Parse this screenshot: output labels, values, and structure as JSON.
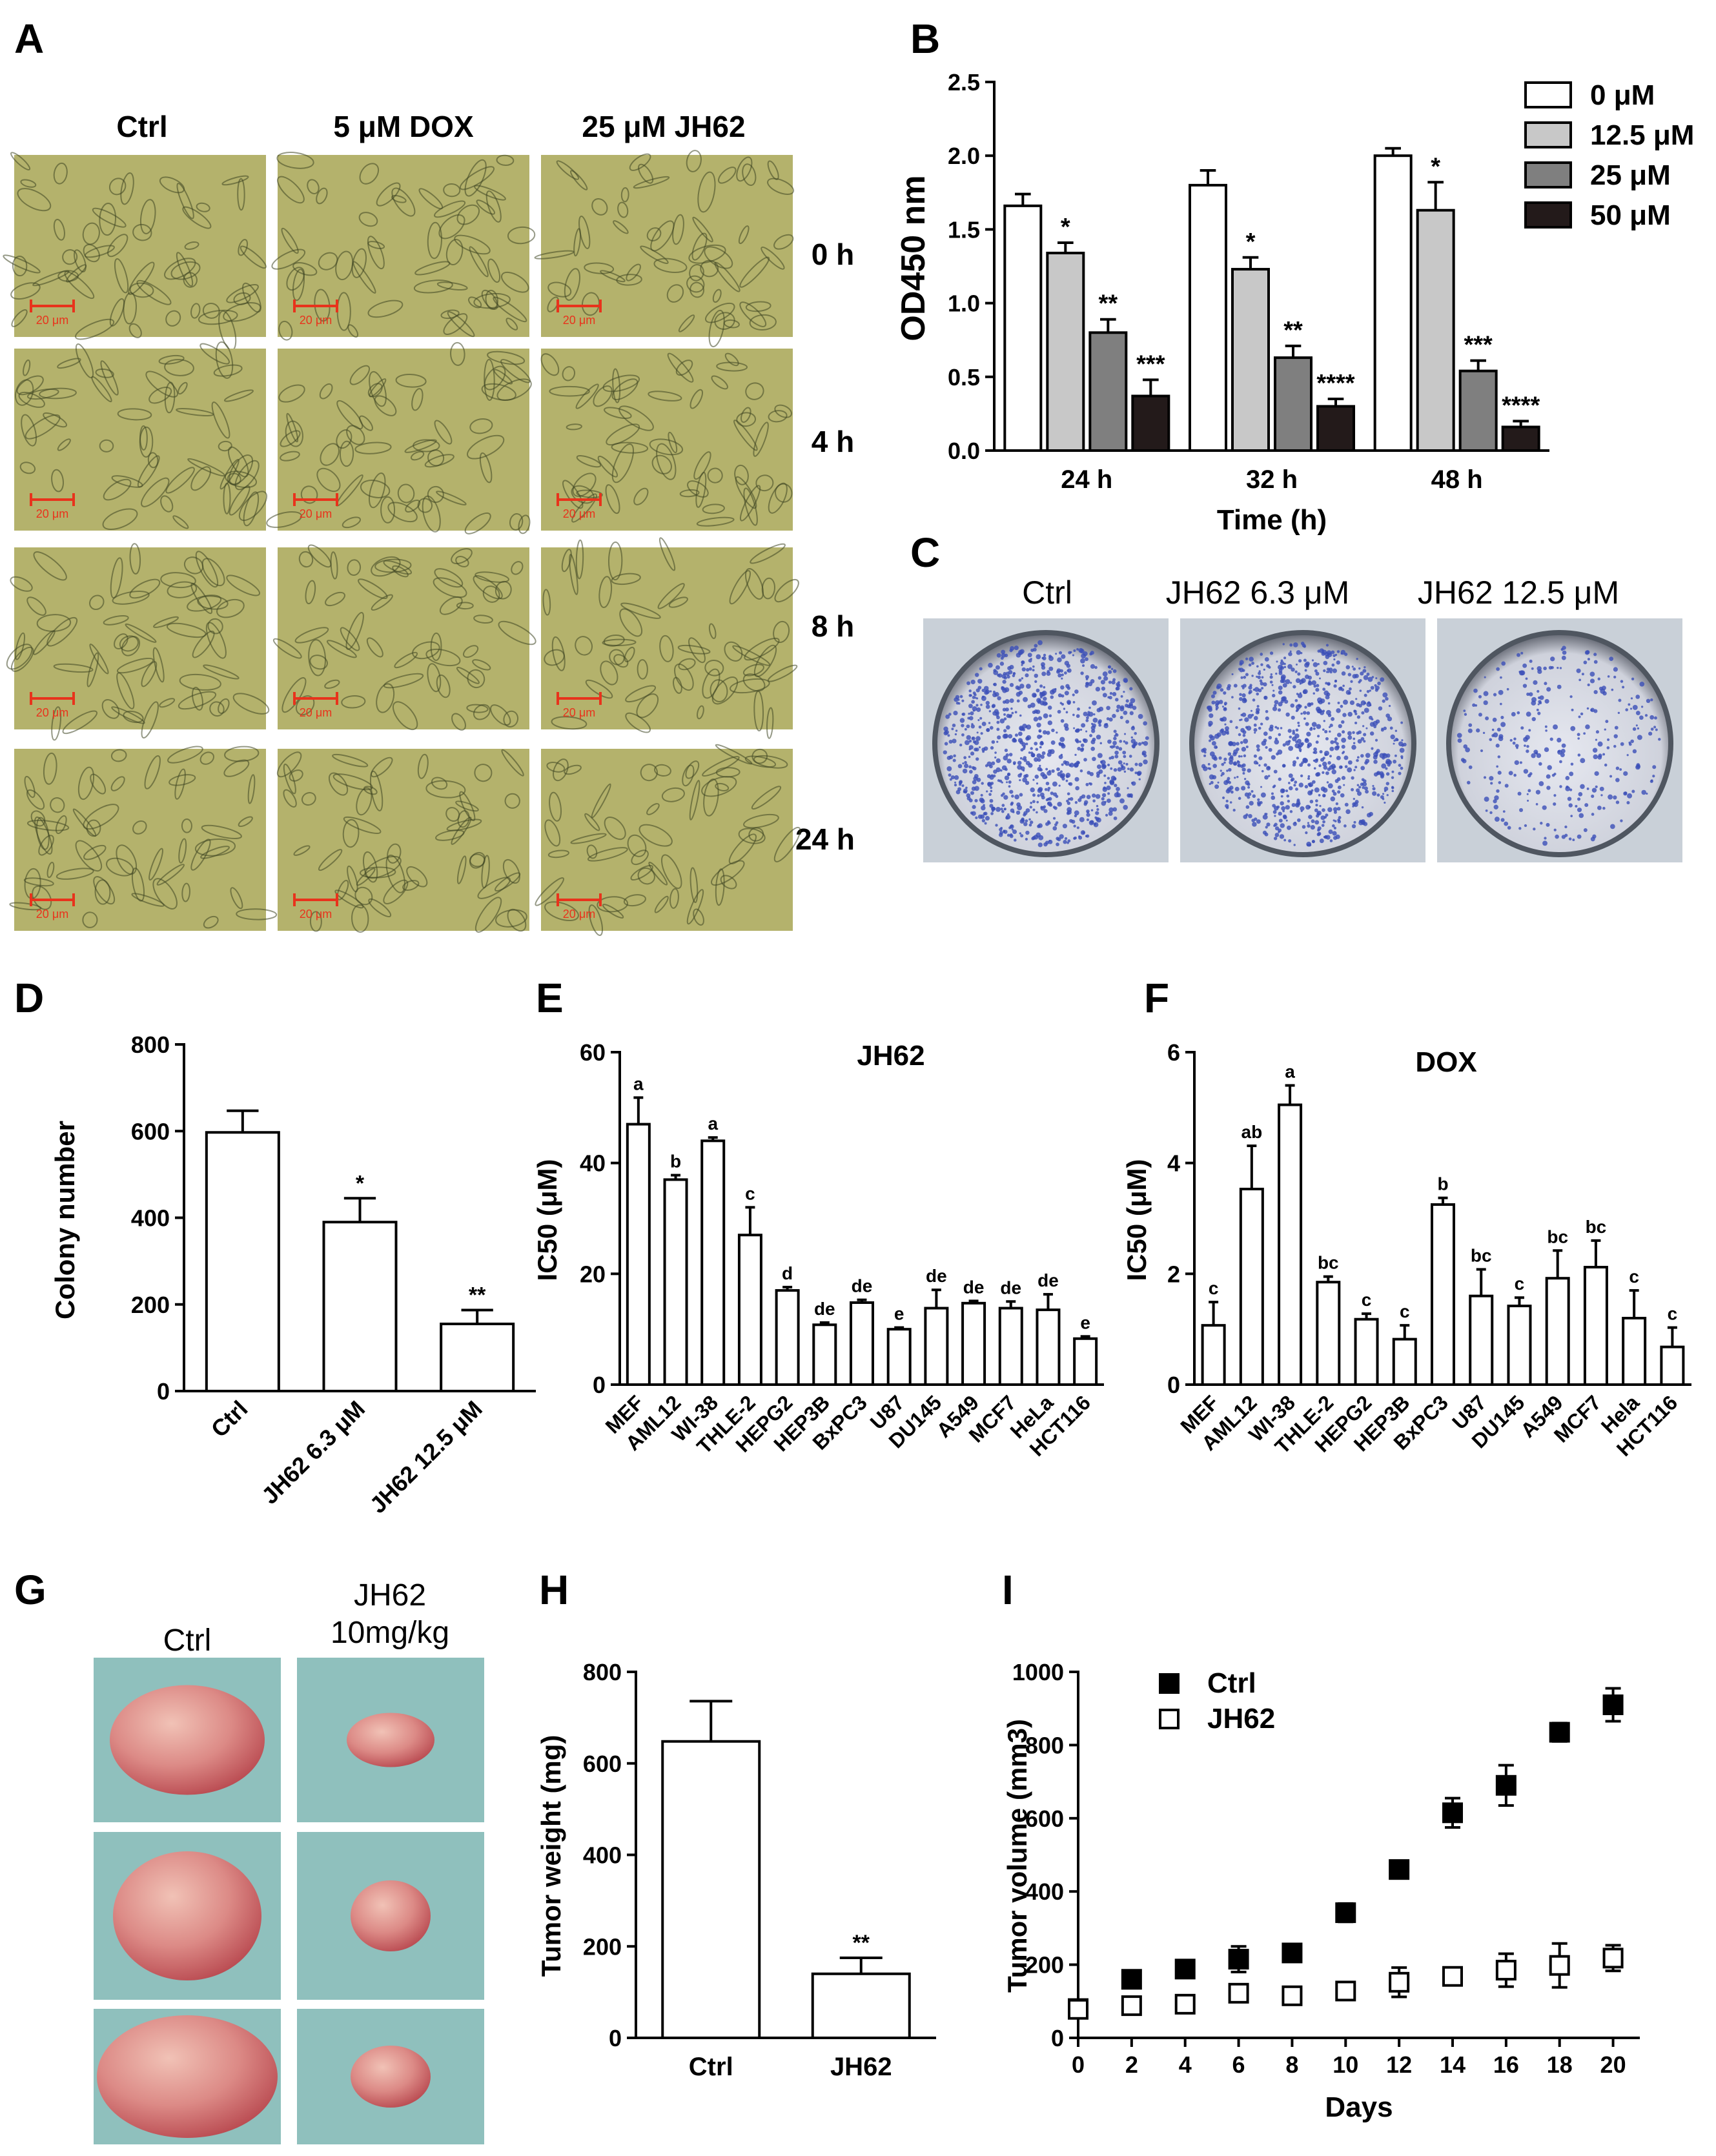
{
  "panel_letters": [
    "A",
    "B",
    "C",
    "D",
    "E",
    "F",
    "G",
    "H",
    "I"
  ],
  "panel_a": {
    "columns": [
      "Ctrl",
      "5 μM DOX",
      "25 μM JH62"
    ],
    "rows": [
      "0 h",
      "4 h",
      "8 h",
      "24 h"
    ],
    "scale_bar": "20 μm",
    "scale_bar_color": "#e8331c",
    "image_tint": "#b4b26c"
  },
  "panel_c": {
    "labels": [
      "Ctrl",
      "JH62 6.3 μM",
      "JH62 12.5 μM"
    ],
    "stain_color": "#3b4fb8",
    "colony_density": [
      1.0,
      0.95,
      0.35
    ]
  },
  "panel_g": {
    "labels": [
      "Ctrl",
      "JH62",
      "10mg/kg"
    ],
    "background_color": "#8fc0bd",
    "tumor_color": "#d4787a"
  },
  "chart_data": [
    {
      "panel": "B",
      "type": "bar",
      "categories": [
        "24 h",
        "32 h",
        "48 h"
      ],
      "xlabel": "Time (h)",
      "ylabel": "OD450 nm",
      "ylim": [
        0,
        2.5
      ],
      "yticks": [
        "0.0",
        "0.5",
        "1.0",
        "1.5",
        "2.0",
        "2.5"
      ],
      "legend_position": "top-right",
      "series": [
        {
          "name": "0 μM",
          "color": "#ffffff",
          "values": [
            1.66,
            1.8,
            2.0
          ],
          "errors": [
            0.08,
            0.1,
            0.05
          ],
          "labels": [
            "",
            "",
            ""
          ]
        },
        {
          "name": "12.5 μM",
          "color": "#c8c8c8",
          "values": [
            1.34,
            1.23,
            1.63
          ],
          "errors": [
            0.07,
            0.08,
            0.19
          ],
          "labels": [
            "*",
            "*",
            "*"
          ]
        },
        {
          "name": "25 μM",
          "color": "#7f7f7f",
          "values": [
            0.8,
            0.63,
            0.54
          ],
          "errors": [
            0.09,
            0.08,
            0.07
          ],
          "labels": [
            "**",
            "**",
            "***"
          ]
        },
        {
          "name": "50 μM",
          "color": "#231a1a",
          "values": [
            0.37,
            0.3,
            0.16
          ],
          "errors": [
            0.11,
            0.05,
            0.04
          ],
          "labels": [
            "***",
            "****",
            "****"
          ]
        }
      ]
    },
    {
      "panel": "D",
      "type": "bar",
      "categories": [
        "Ctrl",
        "JH62 6.3 μM",
        "JH62 12.5 μM"
      ],
      "values": [
        597,
        390,
        155
      ],
      "errors": [
        50,
        55,
        32
      ],
      "labels": [
        "",
        "*",
        "**"
      ],
      "ylabel": "Colony number",
      "ylim": [
        0,
        800
      ],
      "yticks": [
        "0",
        "200",
        "400",
        "600",
        "800"
      ]
    },
    {
      "panel": "E",
      "type": "bar",
      "title": "JH62",
      "categories": [
        "MEF",
        "AML12",
        "WI-38",
        "THLE-2",
        "HEPG2",
        "HEP3B",
        "BxPC3",
        "U87",
        "DU145",
        "A549",
        "MCF7",
        "HeLa",
        "HCT116"
      ],
      "values": [
        47,
        37,
        44,
        27,
        17,
        10.8,
        14.8,
        10,
        13.8,
        14.7,
        13.8,
        13.5,
        8.3
      ],
      "errors": [
        4.8,
        0.8,
        0.6,
        5,
        0.6,
        0.4,
        0.5,
        0.3,
        3.3,
        0.4,
        1.2,
        2.8,
        0.4
      ],
      "labels": [
        "a",
        "b",
        "a",
        "c",
        "d",
        "de",
        "de",
        "e",
        "de",
        "de",
        "de",
        "de",
        "e"
      ],
      "ylabel": "IC50 (μM)",
      "ylim": [
        0,
        60
      ],
      "yticks": [
        "0",
        "20",
        "40",
        "60"
      ]
    },
    {
      "panel": "F",
      "type": "bar",
      "title": "DOX",
      "categories": [
        "MEF",
        "AML12",
        "WI-38",
        "THLE-2",
        "HEPG2",
        "HEP3B",
        "BxPC3",
        "U87",
        "DU145",
        "A549",
        "MCF7",
        "Hela",
        "HCT116"
      ],
      "values": [
        1.07,
        3.53,
        5.05,
        1.85,
        1.18,
        0.82,
        3.25,
        1.6,
        1.42,
        1.92,
        2.12,
        1.2,
        0.68
      ],
      "errors": [
        0.42,
        0.78,
        0.35,
        0.1,
        0.1,
        0.25,
        0.12,
        0.48,
        0.15,
        0.5,
        0.48,
        0.5,
        0.35
      ],
      "labels": [
        "c",
        "ab",
        "a",
        "bc",
        "c",
        "c",
        "b",
        "bc",
        "c",
        "bc",
        "bc",
        "c",
        "c"
      ],
      "ylabel": "IC50 (μM)",
      "ylim": [
        0,
        6
      ],
      "yticks": [
        "0",
        "2",
        "4",
        "6"
      ]
    },
    {
      "panel": "H",
      "type": "bar",
      "categories": [
        "Ctrl",
        "JH62"
      ],
      "values": [
        648,
        140
      ],
      "errors": [
        88,
        35
      ],
      "labels": [
        "",
        "**"
      ],
      "ylabel": "Tumor weight (mg)",
      "ylim": [
        0,
        800
      ],
      "yticks": [
        "0",
        "200",
        "400",
        "600",
        "800"
      ]
    },
    {
      "panel": "I",
      "type": "scatter",
      "xlabel": "Days",
      "ylabel": "Tumor volume (mm3)",
      "xlim": [
        0,
        21
      ],
      "ylim": [
        0,
        1000
      ],
      "xticks": [
        "0",
        "2",
        "4",
        "6",
        "8",
        "10",
        "12",
        "14",
        "16",
        "18",
        "20"
      ],
      "yticks": [
        "0",
        "200",
        "400",
        "600",
        "800",
        "1000"
      ],
      "legend_position": "top-left",
      "x": [
        0,
        2,
        4,
        6,
        8,
        10,
        12,
        14,
        16,
        18,
        20
      ],
      "series": [
        {
          "name": "Ctrl",
          "marker": "filled-square",
          "values": [
            80,
            160,
            188,
            215,
            232,
            342,
            460,
            615,
            690,
            835,
            910
          ],
          "errors": [
            8,
            10,
            10,
            35,
            8,
            25,
            10,
            40,
            55,
            25,
            45
          ]
        },
        {
          "name": "JH62",
          "marker": "open-square",
          "values": [
            78,
            88,
            92,
            122,
            115,
            128,
            152,
            168,
            185,
            198,
            218
          ],
          "errors": [
            5,
            5,
            5,
            10,
            8,
            8,
            40,
            15,
            45,
            60,
            35
          ]
        }
      ]
    }
  ]
}
